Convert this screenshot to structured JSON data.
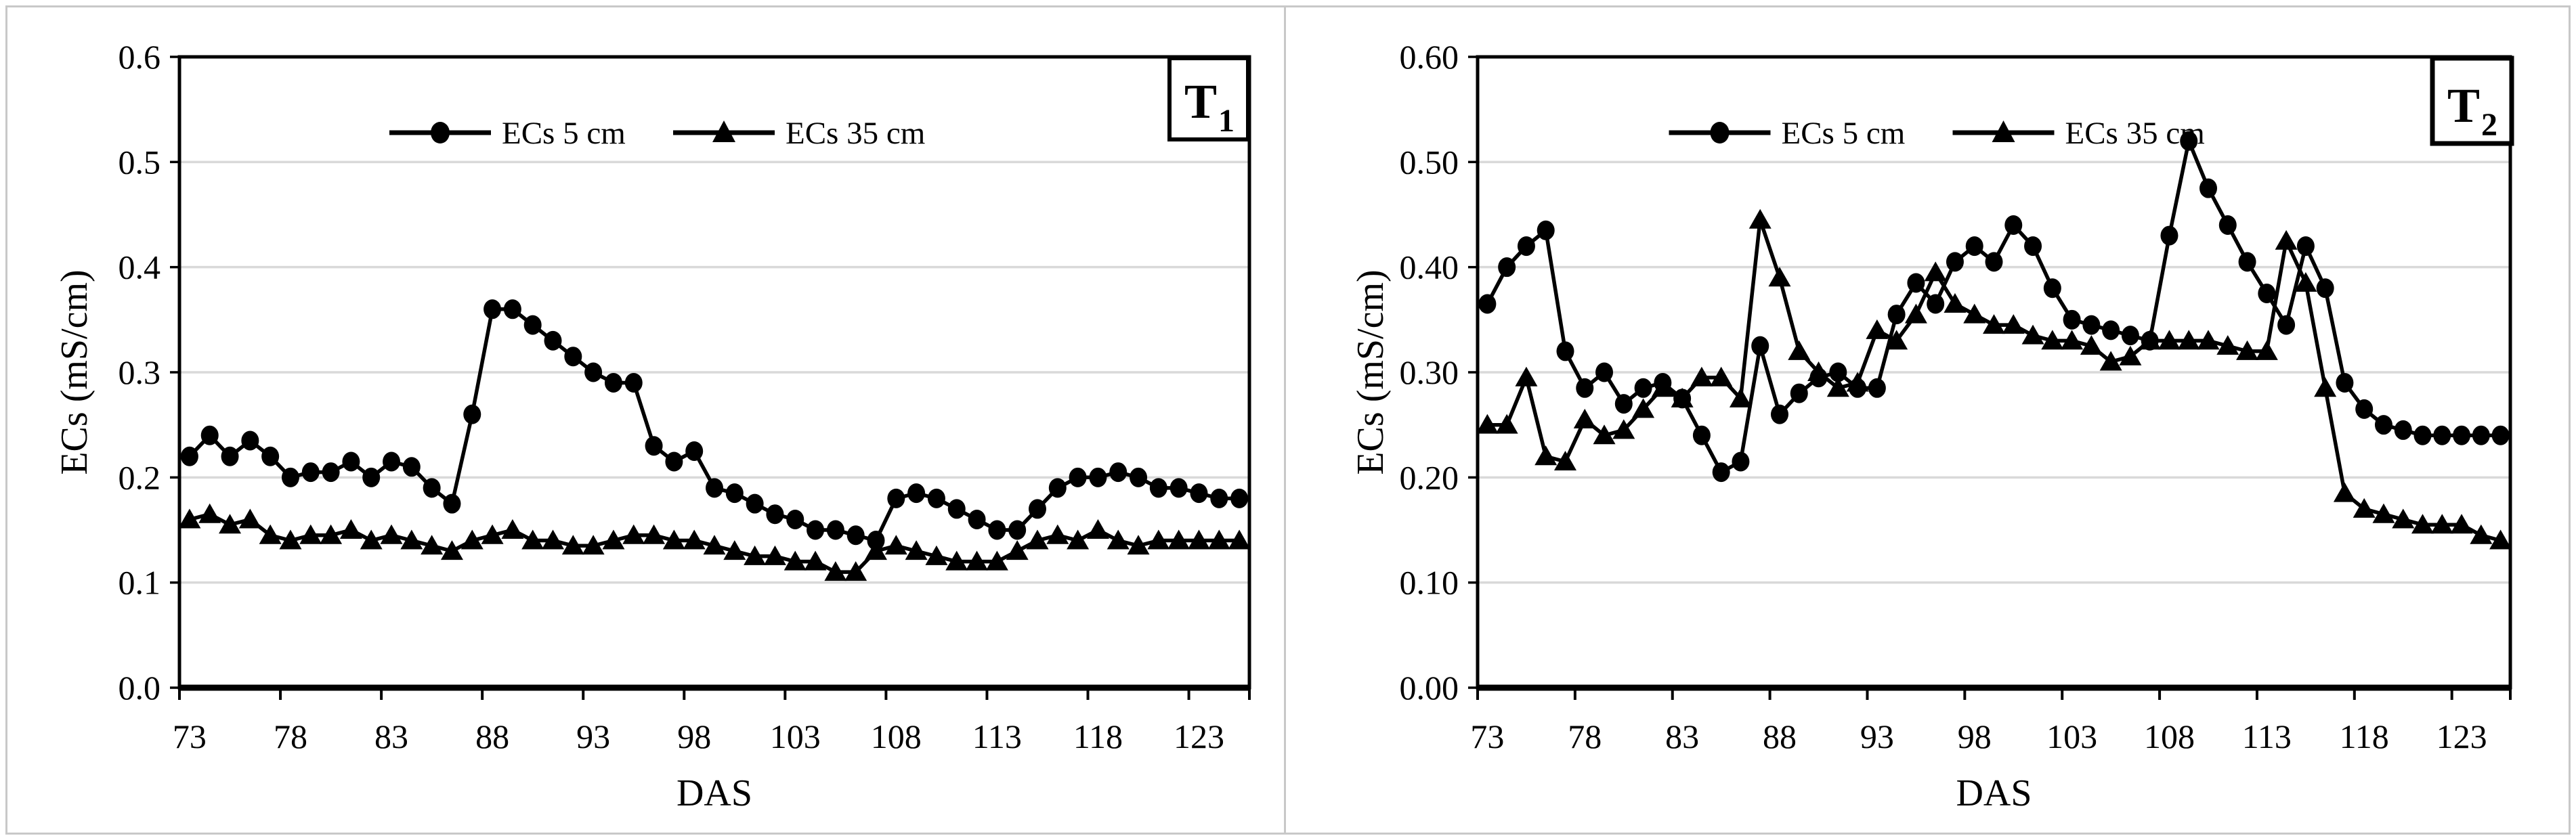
{
  "figure": {
    "background": "#ffffff",
    "frame_color": "#c8c8c8",
    "series_color": "#000000",
    "gridline_color": "#d9d9d9",
    "axis_color": "#000000"
  },
  "panels": [
    {
      "panel_label": {
        "main": "T",
        "sub": "1"
      },
      "y_title": "ECs (mS/cm)",
      "x_title": "DAS",
      "y_tick_labels": [
        "0.0",
        "0.1",
        "0.2",
        "0.3",
        "0.4",
        "0.5",
        "0.6"
      ],
      "x_tick_labels": [
        "73",
        "78",
        "83",
        "88",
        "93",
        "98",
        "103",
        "108",
        "113",
        "118",
        "123"
      ],
      "legend": [
        {
          "label": "ECs 5 cm",
          "marker": "circle"
        },
        {
          "label": "ECs 35 cm",
          "marker": "triangle"
        }
      ]
    },
    {
      "panel_label": {
        "main": "T",
        "sub": "2"
      },
      "y_title": "ECs (mS/cm)",
      "x_title": "DAS",
      "y_tick_labels": [
        "0.00",
        "0.10",
        "0.20",
        "0.30",
        "0.40",
        "0.50",
        "0.60"
      ],
      "x_tick_labels": [
        "73",
        "78",
        "83",
        "88",
        "93",
        "98",
        "103",
        "108",
        "113",
        "118",
        "123"
      ],
      "legend": [
        {
          "label": "ECs 5 cm",
          "marker": "circle"
        },
        {
          "label": "ECs 35 cm",
          "marker": "triangle"
        }
      ]
    }
  ],
  "chart_data": [
    {
      "type": "line",
      "panel": "T1",
      "xlabel": "DAS",
      "ylabel": "ECs (mS/cm)",
      "ylim": [
        0,
        0.6
      ],
      "yticks": [
        0.0,
        0.1,
        0.2,
        0.3,
        0.4,
        0.5,
        0.6
      ],
      "xticks": [
        73,
        78,
        83,
        88,
        93,
        98,
        103,
        108,
        113,
        118,
        123
      ],
      "grid": "horizontal",
      "legend_position": "top-center",
      "x": [
        73,
        74,
        75,
        76,
        77,
        78,
        79,
        80,
        81,
        82,
        83,
        84,
        85,
        86,
        87,
        88,
        89,
        90,
        91,
        92,
        93,
        94,
        95,
        96,
        97,
        98,
        99,
        100,
        101,
        102,
        103,
        104,
        105,
        106,
        107,
        108,
        109,
        110,
        111,
        112,
        113,
        114,
        115,
        116,
        117,
        118,
        119,
        120,
        121,
        122,
        123,
        124,
        125
      ],
      "series": [
        {
          "name": "ECs 5 cm",
          "marker": "circle",
          "color": "#000000",
          "values": [
            0.22,
            0.24,
            0.22,
            0.235,
            0.22,
            0.2,
            0.205,
            0.205,
            0.215,
            0.2,
            0.215,
            0.21,
            0.19,
            0.175,
            0.26,
            0.36,
            0.36,
            0.345,
            0.33,
            0.315,
            0.3,
            0.29,
            0.29,
            0.23,
            0.215,
            0.225,
            0.19,
            0.185,
            0.175,
            0.165,
            0.16,
            0.15,
            0.15,
            0.145,
            0.14,
            0.18,
            0.185,
            0.18,
            0.17,
            0.16,
            0.15,
            0.15,
            0.17,
            0.19,
            0.2,
            0.2,
            0.205,
            0.2,
            0.19,
            0.19,
            0.185,
            0.18,
            0.18
          ]
        },
        {
          "name": "ECs 35 cm",
          "marker": "triangle",
          "color": "#000000",
          "values": [
            0.16,
            0.165,
            0.155,
            0.16,
            0.145,
            0.14,
            0.145,
            0.145,
            0.15,
            0.14,
            0.145,
            0.14,
            0.135,
            0.13,
            0.14,
            0.145,
            0.15,
            0.14,
            0.14,
            0.135,
            0.135,
            0.14,
            0.145,
            0.145,
            0.14,
            0.14,
            0.135,
            0.13,
            0.125,
            0.125,
            0.12,
            0.12,
            0.11,
            0.11,
            0.13,
            0.135,
            0.13,
            0.125,
            0.12,
            0.12,
            0.12,
            0.13,
            0.14,
            0.145,
            0.14,
            0.15,
            0.14,
            0.135,
            0.14,
            0.14,
            0.14,
            0.14,
            0.14
          ]
        }
      ]
    },
    {
      "type": "line",
      "panel": "T2",
      "xlabel": "DAS",
      "ylabel": "ECs (mS/cm)",
      "ylim": [
        0,
        0.6
      ],
      "yticks": [
        0.0,
        0.1,
        0.2,
        0.3,
        0.4,
        0.5,
        0.6
      ],
      "xticks": [
        73,
        78,
        83,
        88,
        93,
        98,
        103,
        108,
        113,
        118,
        123
      ],
      "grid": "horizontal",
      "legend_position": "top-center",
      "x": [
        73,
        74,
        75,
        76,
        77,
        78,
        79,
        80,
        81,
        82,
        83,
        84,
        85,
        86,
        87,
        88,
        89,
        90,
        91,
        92,
        93,
        94,
        95,
        96,
        97,
        98,
        99,
        100,
        101,
        102,
        103,
        104,
        105,
        106,
        107,
        108,
        109,
        110,
        111,
        112,
        113,
        114,
        115,
        116,
        117,
        118,
        119,
        120,
        121,
        122,
        123,
        124,
        125
      ],
      "series": [
        {
          "name": "ECs 5 cm",
          "marker": "circle",
          "color": "#000000",
          "values": [
            0.365,
            0.4,
            0.42,
            0.435,
            0.32,
            0.285,
            0.3,
            0.27,
            0.285,
            0.29,
            0.275,
            0.24,
            0.205,
            0.215,
            0.325,
            0.26,
            0.28,
            0.295,
            0.3,
            0.285,
            0.285,
            0.355,
            0.385,
            0.365,
            0.405,
            0.42,
            0.405,
            0.44,
            0.42,
            0.38,
            0.35,
            0.345,
            0.34,
            0.335,
            0.33,
            0.43,
            0.52,
            0.475,
            0.44,
            0.405,
            0.375,
            0.345,
            0.42,
            0.38,
            0.29,
            0.265,
            0.25,
            0.245,
            0.24,
            0.24,
            0.24,
            0.24,
            0.24
          ]
        },
        {
          "name": "ECs 35 cm",
          "marker": "triangle",
          "color": "#000000",
          "values": [
            0.25,
            0.25,
            0.295,
            0.22,
            0.215,
            0.255,
            0.24,
            0.245,
            0.265,
            0.285,
            0.275,
            0.295,
            0.295,
            0.275,
            0.445,
            0.39,
            0.32,
            0.3,
            0.285,
            0.29,
            0.34,
            0.33,
            0.355,
            0.395,
            0.365,
            0.355,
            0.345,
            0.345,
            0.335,
            0.33,
            0.33,
            0.325,
            0.31,
            0.315,
            0.33,
            0.33,
            0.33,
            0.33,
            0.325,
            0.32,
            0.32,
            0.425,
            0.385,
            0.285,
            0.185,
            0.17,
            0.165,
            0.16,
            0.155,
            0.155,
            0.155,
            0.145,
            0.14
          ]
        }
      ]
    }
  ]
}
